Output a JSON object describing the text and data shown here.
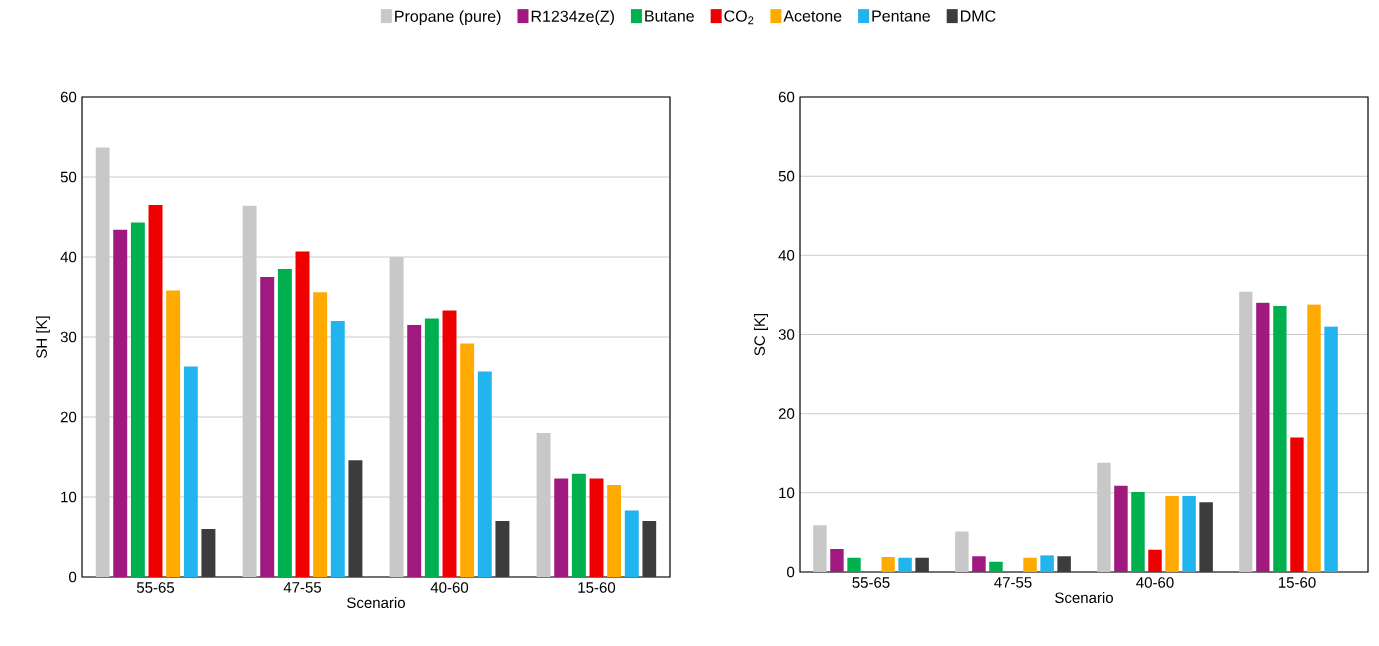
{
  "chart_data": [
    {
      "type": "bar",
      "xlabel": "Scenario",
      "ylabel": "SH [K]",
      "categories": [
        "55-65",
        "47-55",
        "40-60",
        "15-60"
      ],
      "ylim": [
        0,
        60
      ],
      "yticks": [
        0,
        10,
        20,
        30,
        40,
        50,
        60
      ],
      "grid": "y",
      "legend": "top",
      "series": [
        {
          "name": "Propane (pure)",
          "color": "#c8c8c8",
          "values": [
            53.7,
            46.4,
            40.0,
            18.0
          ]
        },
        {
          "name": "R1234ze(Z)",
          "color": "#a0197e",
          "values": [
            43.4,
            37.5,
            31.5,
            12.3
          ]
        },
        {
          "name": "Butane",
          "color": "#00b04f",
          "values": [
            44.3,
            38.5,
            32.3,
            12.9
          ]
        },
        {
          "name": "CO$_{2}$",
          "color": "#ee0000",
          "values": [
            46.5,
            40.7,
            33.3,
            12.3
          ]
        },
        {
          "name": "Acetone",
          "color": "#ffaa00",
          "values": [
            35.8,
            35.6,
            29.2,
            11.5
          ]
        },
        {
          "name": "Pentane",
          "color": "#22b4ee",
          "values": [
            26.3,
            32.0,
            25.7,
            8.3
          ]
        },
        {
          "name": "DMC",
          "color": "#3c3c3c",
          "values": [
            6.0,
            14.6,
            7.0,
            7.0
          ]
        }
      ]
    },
    {
      "type": "bar",
      "xlabel": "Scenario",
      "ylabel": "SC [K]",
      "categories": [
        "55-65",
        "47-55",
        "40-60",
        "15-60"
      ],
      "ylim": [
        0,
        60
      ],
      "yticks": [
        0,
        10,
        20,
        30,
        40,
        50,
        60
      ],
      "grid": "y",
      "series": [
        {
          "color": "#c8c8c8",
          "values": [
            5.9,
            5.1,
            13.8,
            35.4
          ]
        },
        {
          "color": "#a0197e",
          "values": [
            2.9,
            2.0,
            10.9,
            34.0
          ]
        },
        {
          "color": "#00b04f",
          "values": [
            1.8,
            1.3,
            10.1,
            33.6
          ]
        },
        {
          "color": "#ee0000",
          "values": [
            null,
            null,
            2.8,
            17.0
          ]
        },
        {
          "color": "#ffaa00",
          "values": [
            1.9,
            1.8,
            9.6,
            33.8
          ]
        },
        {
          "color": "#22b4ee",
          "values": [
            1.8,
            2.1,
            9.6,
            31.0
          ]
        },
        {
          "color": "#3c3c3c",
          "values": [
            1.8,
            2.0,
            8.8,
            null
          ]
        }
      ]
    }
  ]
}
